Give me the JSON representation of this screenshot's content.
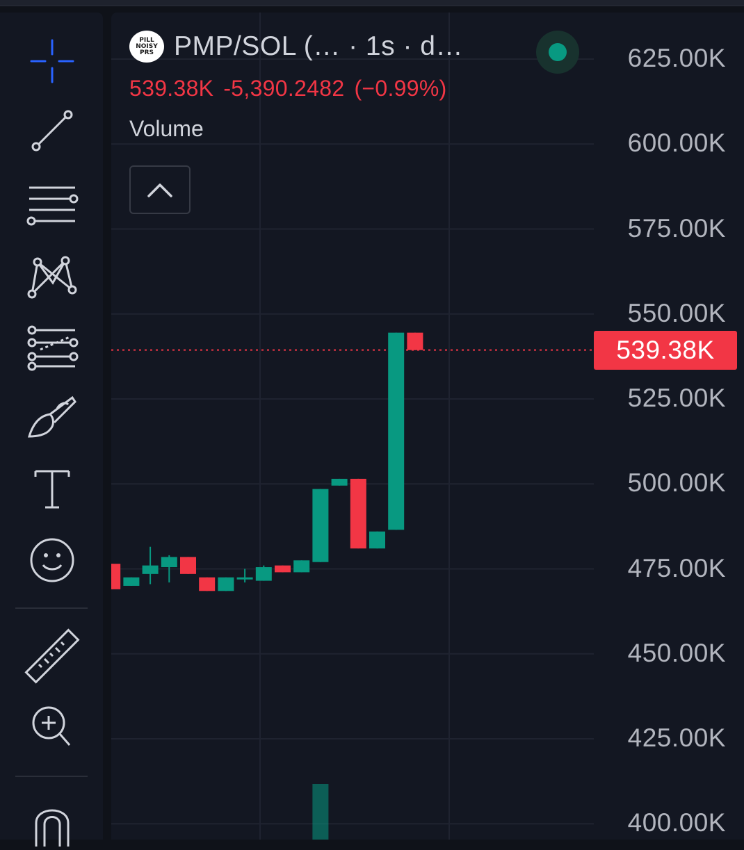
{
  "legend": {
    "symbol_title": "PMP/SOL (…  · 1s · d…",
    "logo_text": "PILL NOISY PRS",
    "last_price": "539.38K",
    "change": "-5,390.2482",
    "change_pct": "(−0.99%)",
    "volume_label": "Volume"
  },
  "price_axis": {
    "labels": [
      "625.00K",
      "600.00K",
      "575.00K",
      "550.00K",
      "525.00K",
      "500.00K",
      "475.00K",
      "450.00K",
      "425.00K",
      "400.00K"
    ],
    "last_price_tag": "539.38K"
  },
  "toolbar": {
    "tools": [
      "crosshair-icon",
      "trend-line-icon",
      "fib-retracement-icon",
      "pattern-icon",
      "prediction-icon",
      "brush-icon",
      "text-icon",
      "emoji-icon",
      "ruler-icon",
      "zoom-in-icon",
      "magnet-icon"
    ]
  },
  "colors": {
    "up": "#089981",
    "down": "#f23645",
    "background": "#131722",
    "crosshair": "#2962ff",
    "text": "#d1d4dc"
  },
  "chart_data": {
    "type": "candlestick",
    "title": "PMP/SOL (…  · 1s · d…",
    "ylim": [
      400000,
      625000
    ],
    "last_price": 539380,
    "candles": [
      {
        "o": 476500,
        "h": 476500,
        "l": 469000,
        "c": 469000
      },
      {
        "o": 470000,
        "h": 472500,
        "l": 470000,
        "c": 472500
      },
      {
        "o": 473500,
        "h": 481500,
        "l": 470500,
        "c": 476000
      },
      {
        "o": 475500,
        "h": 479000,
        "l": 471000,
        "c": 478500
      },
      {
        "o": 478500,
        "h": 478500,
        "l": 473500,
        "c": 473500
      },
      {
        "o": 472500,
        "h": 472500,
        "l": 468500,
        "c": 468500
      },
      {
        "o": 468500,
        "h": 472500,
        "l": 468500,
        "c": 472500
      },
      {
        "o": 472000,
        "h": 475000,
        "l": 471000,
        "c": 472500
      },
      {
        "o": 471500,
        "h": 476000,
        "l": 471500,
        "c": 475500
      },
      {
        "o": 476000,
        "h": 476000,
        "l": 474000,
        "c": 474000
      },
      {
        "o": 474000,
        "h": 477500,
        "l": 474000,
        "c": 477500
      },
      {
        "o": 477000,
        "h": 498500,
        "l": 477000,
        "c": 498500
      },
      {
        "o": 499500,
        "h": 501500,
        "l": 499500,
        "c": 501500
      },
      {
        "o": 501500,
        "h": 501500,
        "l": 481000,
        "c": 481000
      },
      {
        "o": 481000,
        "h": 486000,
        "l": 481000,
        "c": 486000
      },
      {
        "o": 486500,
        "h": 544500,
        "l": 486500,
        "c": 544500
      },
      {
        "o": 544500,
        "h": 544500,
        "l": 539380,
        "c": 539380
      }
    ],
    "volume": [
      0,
      0,
      0,
      0,
      0,
      0,
      0,
      0,
      0,
      0,
      0,
      1,
      0,
      0,
      0,
      0,
      0
    ]
  }
}
